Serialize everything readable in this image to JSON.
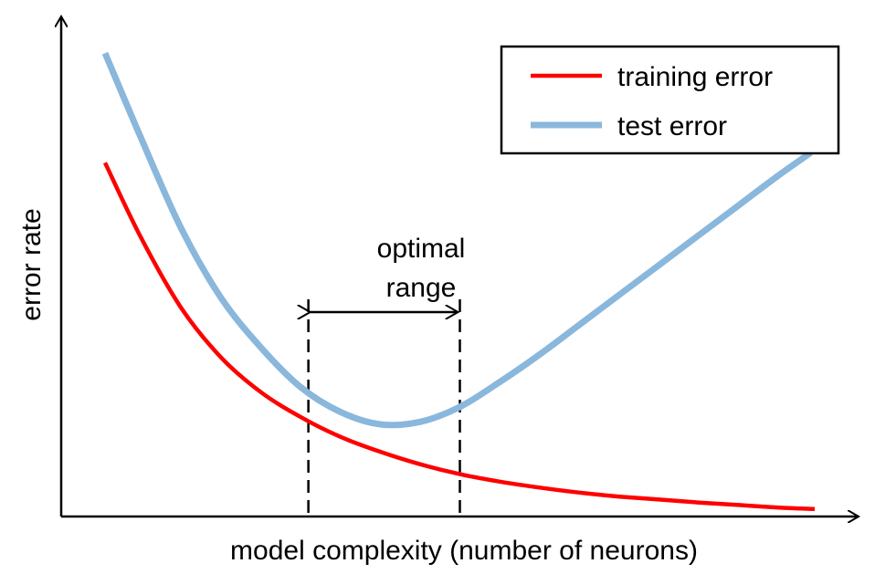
{
  "chart_data": {
    "type": "line",
    "xlabel": "model complexity (number of neurons)",
    "ylabel": "error rate",
    "xlim": [
      0,
      10
    ],
    "ylim": [
      0,
      10
    ],
    "grid": false,
    "legend": "top-right",
    "series": [
      {
        "name": "training error",
        "color": "#ff0000",
        "x": [
          0.55,
          1.0,
          1.5,
          2.0,
          2.5,
          3.0,
          3.5,
          4.0,
          4.5,
          5.0,
          5.5,
          6.0,
          6.5,
          7.0,
          7.5,
          8.0,
          8.5,
          9.0,
          9.45
        ],
        "y": [
          7.1,
          5.6,
          4.2,
          3.2,
          2.5,
          2.0,
          1.6,
          1.3,
          1.05,
          0.85,
          0.7,
          0.58,
          0.48,
          0.4,
          0.34,
          0.28,
          0.23,
          0.18,
          0.15
        ]
      },
      {
        "name": "test error",
        "color": "#8ab7dc",
        "x": [
          0.55,
          1.0,
          1.5,
          2.0,
          2.5,
          3.0,
          3.5,
          4.0,
          4.5,
          5.0,
          5.5,
          6.0,
          6.5,
          7.0,
          7.5,
          8.0,
          8.5,
          9.0,
          9.4
        ],
        "y": [
          9.3,
          7.6,
          5.8,
          4.4,
          3.4,
          2.6,
          2.1,
          1.85,
          1.9,
          2.2,
          2.7,
          3.25,
          3.85,
          4.45,
          5.05,
          5.65,
          6.25,
          6.85,
          7.3
        ]
      }
    ],
    "annotations": {
      "optimal_range": {
        "label_line1": "optimal",
        "label_line2": "range",
        "x_start": 3.1,
        "x_end": 5.0
      }
    }
  }
}
